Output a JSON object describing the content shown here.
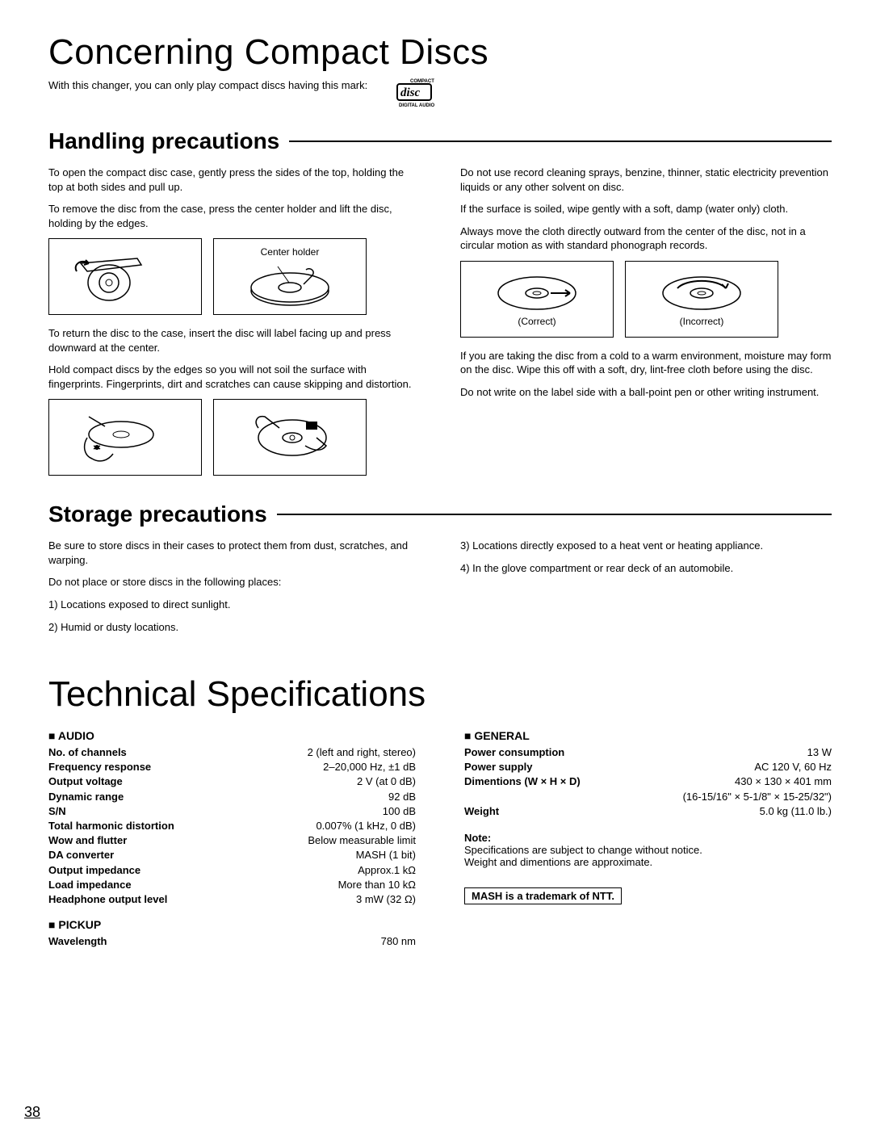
{
  "title_main": "Concerning Compact Discs",
  "intro": "With this changer, you can only play compact discs having this mark:",
  "logo_top": "COMPACT",
  "logo_mid": "disc",
  "logo_bottom": "DIGITAL AUDIO",
  "handling_heading": "Handling precautions",
  "handling_left": {
    "p1": "To open the compact disc case, gently press the sides of the top, holding the top at both sides and pull up.",
    "p2": "To remove the disc from the case, press the center holder and lift the disc, holding by the edges.",
    "center_holder_label": "Center holder",
    "p3": "To return the disc to the case, insert the disc will label facing up and press downward at the center.",
    "p4": "Hold compact discs by the edges so you will not soil the surface with fingerprints. Fingerprints, dirt and scratches can cause skipping and distortion."
  },
  "handling_right": {
    "p1": "Do not use record cleaning sprays, benzine, thinner, static electricity prevention liquids or any other solvent on disc.",
    "p2": "If the surface is soiled, wipe gently with a soft, damp (water only) cloth.",
    "p3": "Always move the cloth directly outward from the center of the disc, not in a circular motion as with standard phonograph records.",
    "correct_label": "(Correct)",
    "incorrect_label": "(Incorrect)",
    "p4": "If you are taking the disc from a cold to a warm environment, moisture may form on the disc. Wipe this off with a soft, dry, lint-free cloth before using the disc.",
    "p5": "Do not write on the label side with a ball-point pen or other writing instrument."
  },
  "storage_heading": "Storage precautions",
  "storage_left": {
    "p1": "Be sure to store discs in their cases to protect them from dust, scratches, and warping.",
    "p2": "Do not place or store discs in the following places:",
    "li1": "1) Locations exposed to direct sunlight.",
    "li2": "2) Humid or dusty locations."
  },
  "storage_right": {
    "li3": "3) Locations directly exposed to a heat vent or heating appliance.",
    "li4": "4) In the glove compartment or rear deck of an automobile."
  },
  "tech_title": "Technical Specifications",
  "audio_heading": "AUDIO",
  "audio_rows": [
    {
      "label": "No. of channels",
      "value": "2 (left and right, stereo)"
    },
    {
      "label": "Frequency response",
      "value": "2–20,000 Hz, ±1 dB"
    },
    {
      "label": "Output voltage",
      "value": "2 V (at 0 dB)"
    },
    {
      "label": "Dynamic range",
      "value": "92 dB"
    },
    {
      "label": "S/N",
      "value": "100 dB"
    },
    {
      "label": "Total harmonic distortion",
      "value": "0.007% (1 kHz, 0 dB)"
    },
    {
      "label": "Wow and flutter",
      "value": "Below measurable limit"
    },
    {
      "label": "DA converter",
      "value": "MASH (1 bit)"
    },
    {
      "label": "Output impedance",
      "value": "Approx.1 kΩ"
    },
    {
      "label": "Load impedance",
      "value": "More than 10 kΩ"
    },
    {
      "label": "Headphone output level",
      "value": "3 mW (32 Ω)"
    }
  ],
  "pickup_heading": "PICKUP",
  "pickup_rows": [
    {
      "label": "Wavelength",
      "value": "780 nm"
    }
  ],
  "general_heading": "GENERAL",
  "general_rows": [
    {
      "label": "Power consumption",
      "value": "13 W"
    },
    {
      "label": "Power supply",
      "value": "AC 120 V, 60 Hz"
    },
    {
      "label": "Dimentions (W × H × D)",
      "value": "430 × 130 × 401 mm"
    },
    {
      "label": "",
      "value": "(16-15/16\" × 5-1/8\" × 15-25/32\")"
    },
    {
      "label": "Weight",
      "value": "5.0 kg (11.0 lb.)"
    }
  ],
  "note_title": "Note:",
  "note_p1": "Specifications are subject to change without notice.",
  "note_p2": "Weight and dimentions are approximate.",
  "trademark": "MASH is a trademark of NTT.",
  "page_number": "38"
}
